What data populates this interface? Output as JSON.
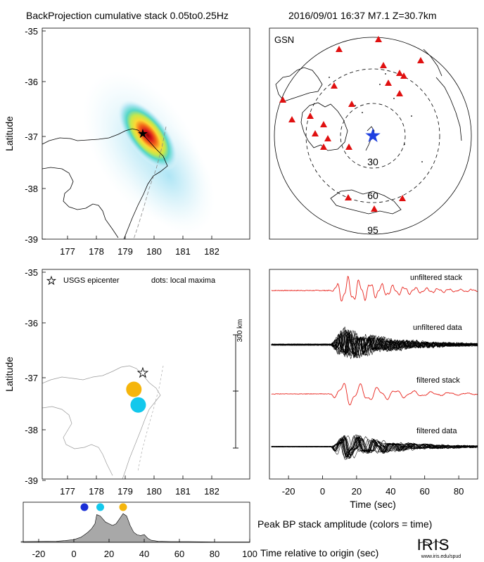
{
  "header": {
    "title": "BackProjection cumulative stack 0.05to0.25Hz",
    "event": "2016/09/01 16:37  M7.1  Z=30.7km"
  },
  "panel_map": {
    "ylabel": "Latitude",
    "xticks": [
      "177",
      "178",
      "179",
      "180",
      "181",
      "182"
    ],
    "yticks": [
      "-35",
      "-36",
      "-37",
      "-38",
      "-39"
    ]
  },
  "panel_globe": {
    "network": "GSN",
    "ring_labels": [
      "30",
      "60",
      "95"
    ]
  },
  "panel_maxima": {
    "ylabel": "Latitude",
    "xticks": [
      "177",
      "178",
      "179",
      "180",
      "181",
      "182"
    ],
    "yticks": [
      "-35",
      "-36",
      "-37",
      "-38",
      "-39"
    ],
    "legend_epicenter": "USGS epicenter",
    "legend_dots": "dots: local maxima",
    "scale_label": "300 km"
  },
  "panel_traces": {
    "labels": [
      "unfiltered stack",
      "unfiltered data",
      "filtered stack",
      "filtered data"
    ],
    "xticks": [
      "-20",
      "0",
      "20",
      "40",
      "60",
      "80"
    ],
    "xlabel": "Time (sec)"
  },
  "panel_amplitude": {
    "xticks": [
      "-20",
      "0",
      "20",
      "40",
      "60",
      "80",
      "100"
    ],
    "caption": "Peak BP stack amplitude (colors = time)",
    "xlabel": "Time relative to origin (sec)"
  },
  "logo": {
    "name": "IRIS",
    "url": "www.iris.edu/spud"
  },
  "colors": {
    "stack_red": "#e8231c",
    "early": "#1a2fd6",
    "mid": "#13c8ec",
    "late": "#f5b50c",
    "epicenter_star_globe": "#1e3fe0",
    "station": "#e01010"
  },
  "chart_data": [
    {
      "type": "heatmap",
      "name": "BackProjection cumulative stack",
      "xlim": [
        176.2,
        182.3
      ],
      "ylim": [
        -40,
        -35
      ],
      "epicenter": {
        "lon": 179.2,
        "lat": -37.45
      },
      "peak": {
        "lon": 179.3,
        "lat": -37.55
      }
    },
    {
      "type": "scatter",
      "name": "local maxima",
      "xlim": [
        176.2,
        182.3
      ],
      "ylim": [
        -40,
        -35
      ],
      "epicenter": {
        "lon": 179.2,
        "lat": -37.45
      },
      "points": [
        {
          "lon": 179.3,
          "lat": -37.25,
          "time": 28,
          "color": "#f5b50c"
        },
        {
          "lon": 179.45,
          "lat": -37.55,
          "time": 15,
          "color": "#13c8ec"
        }
      ]
    },
    {
      "type": "line",
      "name": "Peak BP stack amplitude",
      "xlim": [
        -30,
        100
      ],
      "ylim": [
        0,
        1
      ],
      "x": [
        -30,
        -10,
        -5,
        0,
        4,
        6,
        8,
        10,
        12,
        13,
        15,
        18,
        20,
        22,
        24,
        26,
        28,
        30,
        32,
        34,
        36,
        38,
        40,
        42,
        44,
        48,
        55,
        65,
        80,
        100
      ],
      "y": [
        0.02,
        0.03,
        0.05,
        0.08,
        0.15,
        0.22,
        0.3,
        0.4,
        0.55,
        0.82,
        0.78,
        0.6,
        0.55,
        0.5,
        0.55,
        0.7,
        0.85,
        0.78,
        0.5,
        0.3,
        0.22,
        0.2,
        0.23,
        0.12,
        0.06,
        0.03,
        0.02,
        0.02,
        0.01,
        0.01
      ],
      "dots": [
        {
          "time": 6,
          "color": "#1a2fd6"
        },
        {
          "time": 15,
          "color": "#13c8ec"
        },
        {
          "time": 28,
          "color": "#f5b50c"
        }
      ]
    },
    {
      "type": "line",
      "name": "waveforms",
      "xlim": [
        -30,
        95
      ],
      "onset": 5
    }
  ]
}
